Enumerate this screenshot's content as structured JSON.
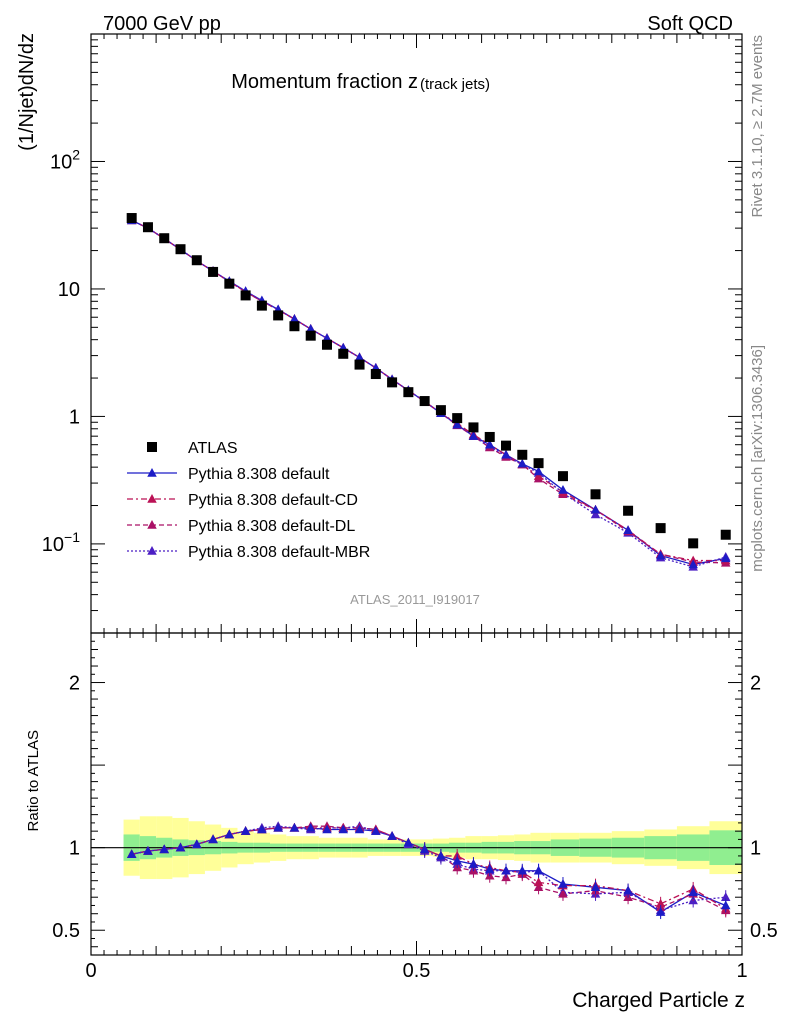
{
  "header": {
    "left": "7000 GeV pp",
    "right": "Soft QCD"
  },
  "side_labels": {
    "rivet": "Rivet 3.1.10, ≥ 2.7M events",
    "mcplots": "mcplots.cern.ch [arXiv:1306.3436]"
  },
  "chart_data": [
    {
      "type": "scatter",
      "title": "Momentum fraction z",
      "title_sub": "(track jets)",
      "ylabel": "(1/Njet)dN/dz",
      "analysis_label": "ATLAS_2011_I919017",
      "yscale": "log",
      "xlim": [
        0,
        1
      ],
      "ylim": [
        0.02,
        1000
      ],
      "y_tick_labels": [
        "10^-1",
        "1",
        "10",
        "10^2"
      ],
      "legend_position": "lower-left",
      "x": [
        0.0625,
        0.0875,
        0.1125,
        0.1375,
        0.1625,
        0.1875,
        0.2125,
        0.2375,
        0.2625,
        0.2875,
        0.3125,
        0.3375,
        0.3625,
        0.3875,
        0.4125,
        0.4375,
        0.4625,
        0.4875,
        0.5125,
        0.5375,
        0.5625,
        0.5875,
        0.6125,
        0.6375,
        0.6625,
        0.6875,
        0.725,
        0.775,
        0.825,
        0.875,
        0.925,
        0.975
      ],
      "series": [
        {
          "name": "ATLAS",
          "marker": "square",
          "color": "#000000",
          "values": [
            36,
            30.5,
            25,
            20.5,
            16.8,
            13.6,
            11,
            8.9,
            7.4,
            6.2,
            5.1,
            4.3,
            3.65,
            3.1,
            2.55,
            2.15,
            1.85,
            1.55,
            1.32,
            1.12,
            0.97,
            0.82,
            0.69,
            0.59,
            0.5,
            0.43,
            0.34,
            0.245,
            0.182,
            0.133,
            0.101,
            0.118
          ]
        },
        {
          "name": "Pythia 8.308 default",
          "marker": "triangle",
          "color": "#1c1cc6",
          "dash": "",
          "values": [
            34.5,
            30,
            24.8,
            20.4,
            16.6,
            13.8,
            11.5,
            9.6,
            8.1,
            6.9,
            5.8,
            4.85,
            4.1,
            3.45,
            2.9,
            2.4,
            1.95,
            1.6,
            1.31,
            1.06,
            0.86,
            0.7,
            0.6,
            0.5,
            0.425,
            0.37,
            0.265,
            0.185,
            0.128,
            0.081,
            0.069,
            0.077
          ]
        },
        {
          "name": "Pythia 8.308 default-CD",
          "marker": "triangle",
          "color": "#bb1155",
          "dash": "6,3,2,3",
          "values": [
            34.5,
            30,
            24.8,
            20.4,
            16.6,
            13.8,
            11.4,
            9.5,
            8.0,
            6.85,
            5.8,
            4.85,
            4.1,
            3.45,
            2.9,
            2.4,
            1.95,
            1.6,
            1.31,
            1.06,
            0.88,
            0.72,
            0.6,
            0.5,
            0.42,
            0.34,
            0.255,
            0.185,
            0.128,
            0.083,
            0.074,
            0.074
          ]
        },
        {
          "name": "Pythia 8.308 default-DL",
          "marker": "triangle",
          "color": "#aa1166",
          "dash": "5,3",
          "values": [
            34.5,
            30,
            24.8,
            20.4,
            16.6,
            13.8,
            11.4,
            9.5,
            8.0,
            6.85,
            5.8,
            4.85,
            4.1,
            3.45,
            2.9,
            2.4,
            1.95,
            1.6,
            1.31,
            1.06,
            0.85,
            0.7,
            0.57,
            0.48,
            0.42,
            0.325,
            0.245,
            0.185,
            0.125,
            0.083,
            0.072,
            0.071
          ]
        },
        {
          "name": "Pythia 8.308 default-MBR",
          "marker": "triangle",
          "color": "#4b1fc4",
          "dash": "2,2",
          "values": [
            34.5,
            30,
            24.8,
            20.4,
            16.6,
            13.8,
            11.5,
            9.6,
            8.1,
            6.9,
            5.8,
            4.85,
            4.1,
            3.45,
            2.9,
            2.4,
            1.95,
            1.6,
            1.31,
            1.06,
            0.86,
            0.7,
            0.58,
            0.49,
            0.42,
            0.36,
            0.25,
            0.17,
            0.122,
            0.078,
            0.066,
            0.079
          ]
        }
      ]
    },
    {
      "type": "scatter",
      "ylabel": "Ratio to ATLAS",
      "xlabel": "Charged Particle z",
      "xlim": [
        0,
        1
      ],
      "ylim": [
        0.35,
        2.3
      ],
      "x_tick_labels": [
        "0",
        "0.5",
        "1"
      ],
      "y_tick_labels": [
        "0.5",
        "1",
        "2"
      ],
      "reference_line": 1,
      "band_inner_color": "#90ee90",
      "band_outer_color": "#ffff99",
      "band_inner_halfwidth": [
        0.08,
        0.07,
        0.06,
        0.05,
        0.045,
        0.04,
        0.035,
        0.03,
        0.03,
        0.025,
        0.025,
        0.025,
        0.025,
        0.025,
        0.025,
        0.025,
        0.025,
        0.025,
        0.025,
        0.025,
        0.03,
        0.03,
        0.035,
        0.035,
        0.04,
        0.04,
        0.05,
        0.055,
        0.06,
        0.07,
        0.08,
        0.105
      ],
      "band_outer_halfwidth": [
        0.17,
        0.19,
        0.19,
        0.18,
        0.16,
        0.14,
        0.12,
        0.1,
        0.09,
        0.08,
        0.07,
        0.07,
        0.06,
        0.06,
        0.06,
        0.05,
        0.05,
        0.05,
        0.05,
        0.055,
        0.06,
        0.07,
        0.07,
        0.075,
        0.08,
        0.09,
        0.09,
        0.09,
        0.1,
        0.11,
        0.13,
        0.16
      ],
      "series": [
        {
          "name": "Pythia 8.308 default",
          "color": "#1c1cc6",
          "dash": "",
          "values": [
            0.96,
            0.98,
            0.99,
            1.0,
            1.02,
            1.05,
            1.08,
            1.1,
            1.11,
            1.12,
            1.12,
            1.12,
            1.11,
            1.11,
            1.11,
            1.1,
            1.07,
            1.03,
            0.99,
            0.95,
            0.92,
            0.9,
            0.87,
            0.86,
            0.86,
            0.86,
            0.78,
            0.76,
            0.74,
            0.61,
            0.73,
            0.65
          ]
        },
        {
          "name": "Pythia 8.308 default-CD",
          "color": "#bb1155",
          "dash": "6,3,2,3",
          "values": [
            0.96,
            0.98,
            0.99,
            1.0,
            1.02,
            1.05,
            1.08,
            1.1,
            1.11,
            1.12,
            1.12,
            1.12,
            1.12,
            1.12,
            1.12,
            1.11,
            1.07,
            1.03,
            0.99,
            0.95,
            0.95,
            0.9,
            0.88,
            0.86,
            0.85,
            0.79,
            0.77,
            0.77,
            0.74,
            0.66,
            0.75,
            0.63
          ]
        },
        {
          "name": "Pythia 8.308 default-DL",
          "color": "#aa1166",
          "dash": "5,3",
          "values": [
            0.96,
            0.98,
            0.99,
            1.0,
            1.02,
            1.05,
            1.08,
            1.1,
            1.11,
            1.12,
            1.12,
            1.13,
            1.13,
            1.12,
            1.12,
            1.11,
            1.07,
            1.03,
            0.99,
            0.95,
            0.88,
            0.86,
            0.83,
            0.82,
            0.84,
            0.76,
            0.72,
            0.74,
            0.7,
            0.64,
            0.72,
            0.62
          ]
        },
        {
          "name": "Pythia 8.308 default-MBR",
          "color": "#4b1fc4",
          "dash": "2,2",
          "values": [
            0.96,
            0.98,
            0.99,
            1.0,
            1.02,
            1.05,
            1.08,
            1.1,
            1.12,
            1.13,
            1.12,
            1.11,
            1.12,
            1.12,
            1.13,
            1.1,
            1.07,
            1.02,
            0.98,
            0.94,
            0.9,
            0.87,
            0.86,
            0.86,
            0.85,
            0.86,
            0.73,
            0.72,
            0.73,
            0.62,
            0.68,
            0.7
          ]
        }
      ]
    }
  ]
}
